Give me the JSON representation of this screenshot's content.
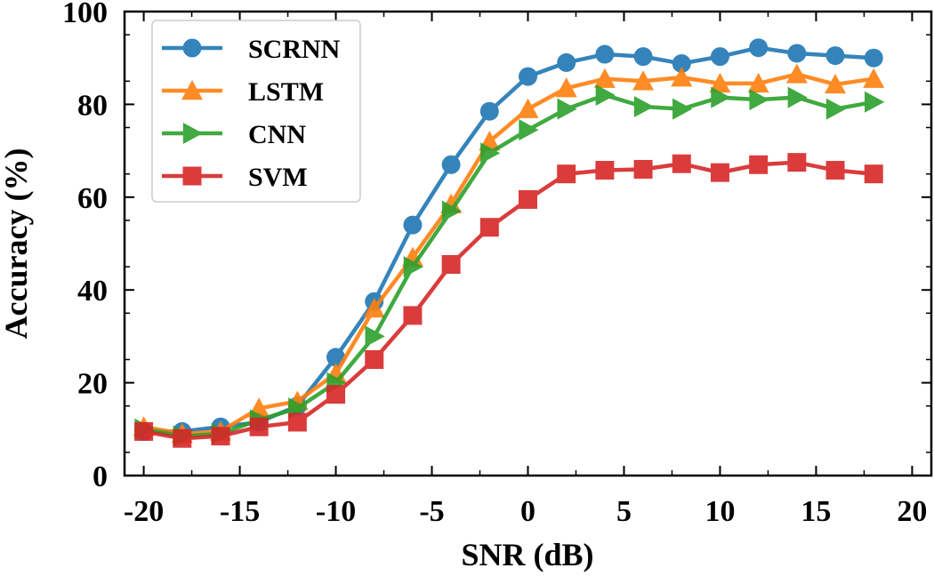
{
  "chart_data": {
    "type": "line",
    "xlabel": "SNR (dB)",
    "ylabel": "Accuracy (%)",
    "xlim": [
      -21,
      21
    ],
    "ylim": [
      0,
      100
    ],
    "x_ticks": [
      -20,
      -15,
      -10,
      -5,
      0,
      5,
      10,
      15,
      20
    ],
    "x_tick_labels": [
      "-20",
      "-15",
      "-10",
      "-5",
      "0",
      "5",
      "10",
      "15",
      "20"
    ],
    "y_ticks": [
      0,
      20,
      40,
      60,
      80,
      100
    ],
    "y_tick_labels": [
      "0",
      "20",
      "40",
      "60",
      "80",
      "100"
    ],
    "legend_position": "top-left",
    "x": [
      -20,
      -18,
      -16,
      -14,
      -12,
      -10,
      -8,
      -6,
      -4,
      -2,
      0,
      2,
      4,
      6,
      8,
      10,
      12,
      14,
      16,
      18
    ],
    "series": [
      {
        "name": "SCRNN",
        "color": "#1f77b4",
        "marker": "circle",
        "values": [
          9.5,
          9.5,
          10.5,
          11.5,
          15.0,
          25.5,
          37.5,
          54.0,
          67.0,
          78.5,
          86.0,
          89.0,
          90.8,
          90.3,
          88.8,
          90.3,
          92.2,
          91.0,
          90.5,
          90.0
        ]
      },
      {
        "name": "LSTM",
        "color": "#ff7f0e",
        "marker": "triangle-up",
        "values": [
          10.5,
          9.0,
          9.5,
          14.5,
          16.0,
          22.0,
          36.0,
          47.0,
          58.5,
          72.0,
          79.0,
          83.5,
          85.5,
          85.0,
          85.8,
          84.5,
          84.5,
          86.5,
          84.3,
          85.5
        ]
      },
      {
        "name": "CNN",
        "color": "#2ca02c",
        "marker": "triangle-right",
        "values": [
          10.0,
          8.5,
          9.0,
          12.0,
          14.5,
          20.0,
          30.0,
          45.0,
          57.0,
          69.5,
          74.5,
          79.0,
          82.0,
          79.5,
          79.0,
          81.5,
          81.0,
          81.5,
          79.0,
          80.5
        ]
      },
      {
        "name": "SVM",
        "color": "#d62728",
        "marker": "square",
        "values": [
          9.5,
          8.0,
          8.5,
          10.5,
          11.5,
          17.5,
          25.0,
          34.5,
          45.5,
          53.5,
          59.5,
          65.0,
          65.8,
          66.0,
          67.2,
          65.3,
          67.0,
          67.5,
          65.8,
          65.0
        ]
      }
    ]
  }
}
